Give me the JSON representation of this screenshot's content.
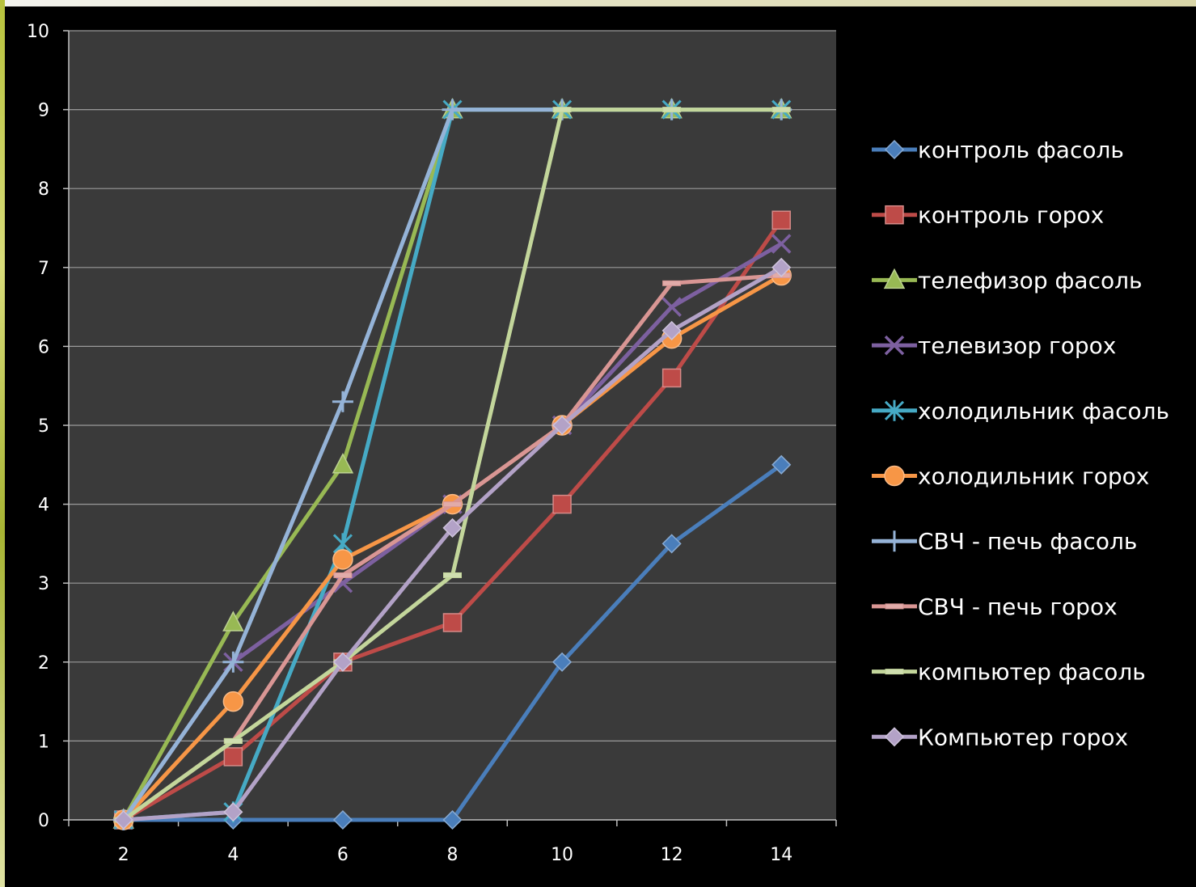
{
  "chart_data": {
    "type": "line",
    "title": "",
    "xlabel": "",
    "ylabel": "",
    "x": [
      2,
      4,
      6,
      8,
      10,
      12,
      14
    ],
    "xlim": [
      1,
      15
    ],
    "ylim": [
      0,
      10
    ],
    "y_ticks": [
      0,
      1,
      2,
      3,
      4,
      5,
      6,
      7,
      8,
      9,
      10
    ],
    "grid": "horizontal",
    "legend_position": "right",
    "plot_background": "#3a3a3a",
    "page_background": "#000000",
    "series": [
      {
        "name": "контроль фасоль",
        "color": "#4a7ebb",
        "marker": "diamond",
        "values": [
          0,
          0,
          0,
          0,
          2,
          3.5,
          4.5
        ]
      },
      {
        "name": "контроль горох",
        "color": "#be4b48",
        "marker": "square",
        "values": [
          0,
          0.8,
          2,
          2.5,
          4,
          5.6,
          7.6
        ]
      },
      {
        "name": "телефизор фасоль",
        "color": "#98b954",
        "marker": "triangle",
        "values": [
          0,
          2.5,
          4.5,
          9,
          9,
          9,
          9
        ]
      },
      {
        "name": "телевизор горох",
        "color": "#7d60a0",
        "marker": "x",
        "values": [
          0,
          2,
          3,
          4,
          5,
          6.5,
          7.3
        ]
      },
      {
        "name": "холодильник фасоль",
        "color": "#46aac5",
        "marker": "asterisk",
        "values": [
          0,
          0.1,
          3.5,
          9,
          9,
          9,
          9
        ]
      },
      {
        "name": "холодильник горох",
        "color": "#f79646",
        "marker": "circle",
        "values": [
          0,
          1.5,
          3.3,
          4,
          5,
          6.1,
          6.9
        ]
      },
      {
        "name": "СВЧ - печь фасоль",
        "color": "#95b3d7",
        "marker": "plus",
        "values": [
          0,
          2,
          5.3,
          9,
          9,
          9,
          9
        ]
      },
      {
        "name": "СВЧ - печь горох",
        "color": "#d99694",
        "marker": "dash",
        "values": [
          0,
          1,
          3.1,
          4,
          5,
          6.8,
          6.9
        ]
      },
      {
        "name": "компьютер фасоль",
        "color": "#c3d69b",
        "marker": "dash",
        "values": [
          0,
          1,
          2,
          3.1,
          9,
          9,
          9
        ]
      },
      {
        "name": "Компьютер горох",
        "color": "#b3a2c7",
        "marker": "diamond",
        "values": [
          0,
          0.1,
          2,
          3.7,
          5,
          6.2,
          7
        ]
      }
    ]
  }
}
